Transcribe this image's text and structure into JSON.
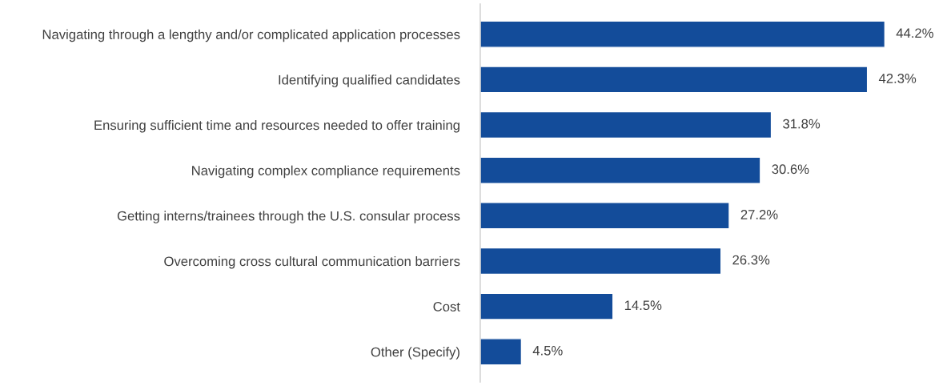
{
  "chart_data": {
    "type": "bar",
    "orientation": "horizontal",
    "categories": [
      "Navigating through a lengthy and/or complicated application processes",
      "Identifying qualified candidates",
      "Ensuring sufficient time and resources needed to offer training",
      "Navigating complex compliance requirements",
      "Getting interns/trainees through the U.S. consular process",
      "Overcoming cross cultural communication barriers",
      "Cost",
      "Other (Specify)"
    ],
    "values": [
      44.2,
      42.3,
      31.8,
      30.6,
      27.2,
      26.3,
      14.5,
      4.5
    ],
    "value_labels": [
      "44.2%",
      "42.3%",
      "31.8%",
      "30.6%",
      "27.2%",
      "26.3%",
      "14.5%",
      "4.5%"
    ],
    "color": "#134c9a"
  }
}
